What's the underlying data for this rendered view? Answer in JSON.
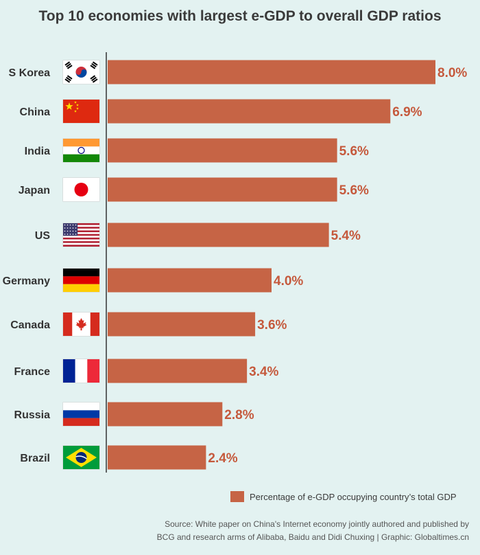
{
  "chart_data": {
    "type": "bar",
    "orientation": "horizontal",
    "title": "Top 10 economies with largest e-GDP to overall GDP ratios",
    "categories": [
      "S Korea",
      "China",
      "India",
      "Japan",
      "US",
      "Germany",
      "Canada",
      "France",
      "Russia",
      "Brazil"
    ],
    "values": [
      8.0,
      6.9,
      5.6,
      5.6,
      5.4,
      4.0,
      3.6,
      3.4,
      2.8,
      2.4
    ],
    "value_labels": [
      "8.0%",
      "6.9%",
      "5.6%",
      "5.6%",
      "5.4%",
      "4.0%",
      "3.6%",
      "3.4%",
      "2.8%",
      "2.4%"
    ],
    "flag_icons": [
      "south-korea-flag-icon",
      "china-flag-icon",
      "india-flag-icon",
      "japan-flag-icon",
      "us-flag-icon",
      "germany-flag-icon",
      "canada-flag-icon",
      "france-flag-icon",
      "russia-flag-icon",
      "brazil-flag-icon"
    ],
    "legend": [
      "Percentage of e-GDP occupying country’s total GDP"
    ],
    "xlim": [
      0,
      8.0
    ],
    "unit": "%",
    "bar_color": "#c66445",
    "value_label_color": "#c5593c"
  },
  "source_line1": "Source: White paper on China's Internet economy jointly authored and published by",
  "source_line2": "BCG and research arms of Alibaba, Baidu and Didi Chuxing | Graphic: Globaltimes.cn",
  "colors": {
    "background": "#e3f2f1",
    "title": "#3a3a3a",
    "axis": "#333333"
  }
}
